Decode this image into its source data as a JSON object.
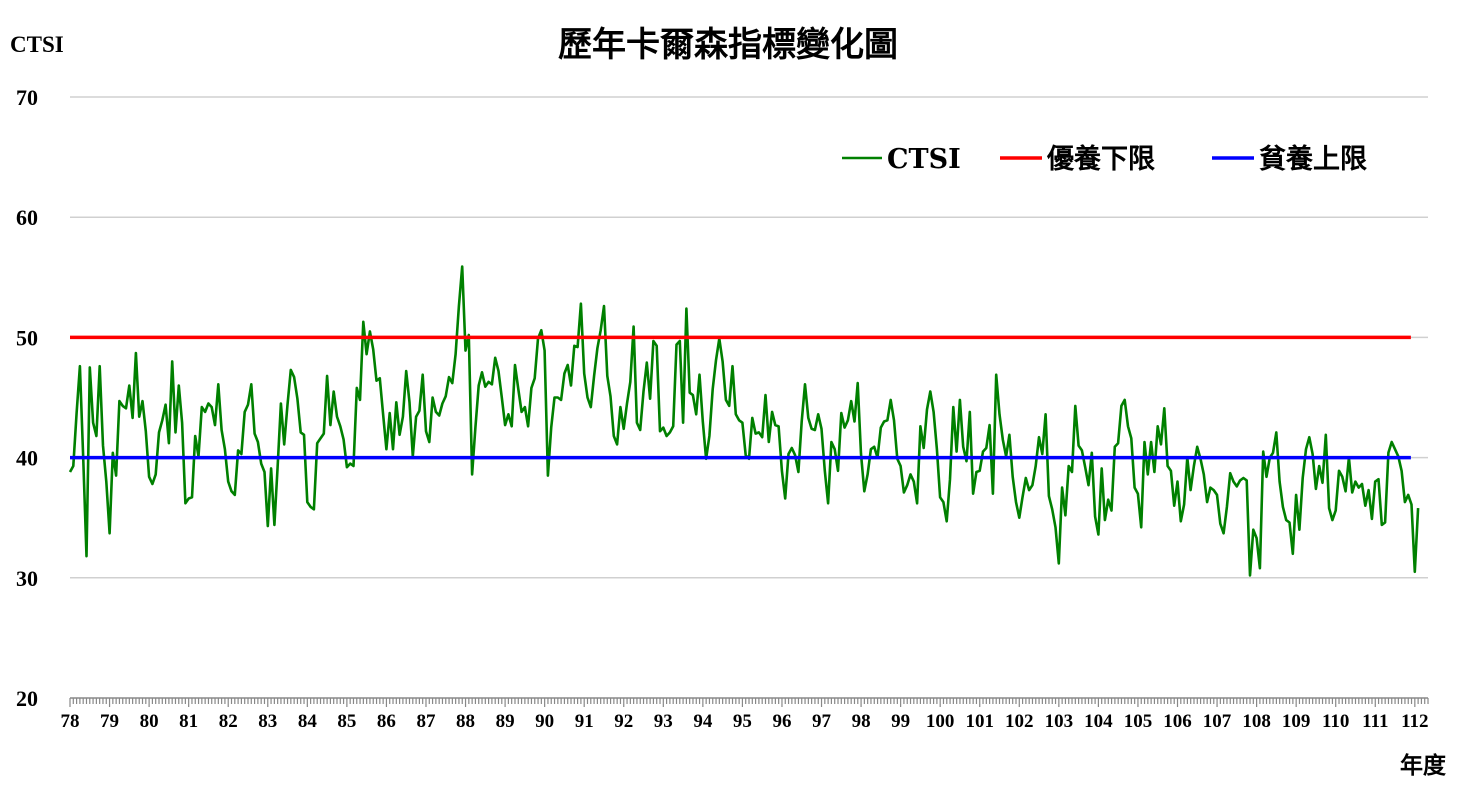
{
  "chart_data": {
    "type": "line",
    "title": "歷年卡爾森指標變化圖",
    "ylabel": "CTSI",
    "xlabel": "年度",
    "ylim": [
      20,
      70
    ],
    "yticks": [
      20,
      30,
      40,
      50,
      60,
      70
    ],
    "xlim": [
      78,
      112.333
    ],
    "xticks": [
      "78",
      "79",
      "80",
      "81",
      "82",
      "83",
      "84",
      "85",
      "86",
      "87",
      "88",
      "89",
      "90",
      "91",
      "92",
      "93",
      "94",
      "95",
      "96",
      "97",
      "98",
      "99",
      "100",
      "101",
      "102",
      "103",
      "104",
      "105",
      "106",
      "107",
      "108",
      "109",
      "110",
      "111",
      "112"
    ],
    "grid": "horizontal",
    "legend_position": "top-right",
    "series": [
      {
        "name": "CTSI",
        "color": "#008000",
        "x_start": 78,
        "step_years": 0.08333,
        "values": [
          38.8,
          39.3,
          43.7,
          47.6,
          40.0,
          31.8,
          47.5,
          42.9,
          41.8,
          47.6,
          41.0,
          38.0,
          33.7,
          40.4,
          38.5,
          44.7,
          44.3,
          44.1,
          46.0,
          43.3,
          48.7,
          43.4,
          44.7,
          42.2,
          38.4,
          37.8,
          38.6,
          42.1,
          43.1,
          44.4,
          41.2,
          48.0,
          42.1,
          46.0,
          42.9,
          36.2,
          36.6,
          36.7,
          41.8,
          40.1,
          44.2,
          43.8,
          44.5,
          44.2,
          42.7,
          46.1,
          42.3,
          40.7,
          38.0,
          37.2,
          36.9,
          40.6,
          40.3,
          43.8,
          44.4,
          46.1,
          42.0,
          41.3,
          39.5,
          38.8,
          34.3,
          39.1,
          34.4,
          39.2,
          44.5,
          41.1,
          44.4,
          47.3,
          46.7,
          44.9,
          42.1,
          41.9,
          36.3,
          35.9,
          35.7,
          41.2,
          41.6,
          42.0,
          46.8,
          42.7,
          45.5,
          43.4,
          42.6,
          41.5,
          39.2,
          39.5,
          39.3,
          45.8,
          44.8,
          51.3,
          48.6,
          50.5,
          49.0,
          46.4,
          46.6,
          43.6,
          40.7,
          43.7,
          40.7,
          44.6,
          41.9,
          43.4,
          47.2,
          44.6,
          40.1,
          43.4,
          43.9,
          46.9,
          42.2,
          41.3,
          45.0,
          43.8,
          43.5,
          44.5,
          45.1,
          46.7,
          46.2,
          48.6,
          52.6,
          55.9,
          48.9,
          50.2,
          38.6,
          42.5,
          46.0,
          47.1,
          45.9,
          46.3,
          46.1,
          48.3,
          47.2,
          45.0,
          42.7,
          43.6,
          42.6,
          47.7,
          45.7,
          43.8,
          44.2,
          42.6,
          45.8,
          46.6,
          49.9,
          50.6,
          48.9,
          38.5,
          42.5,
          45.0,
          45.0,
          44.8,
          47.0,
          47.7,
          46.0,
          49.3,
          49.2,
          52.8,
          47.0,
          45.0,
          44.2,
          46.8,
          49.1,
          50.6,
          52.6,
          46.8,
          45.1,
          41.8,
          41.1,
          44.2,
          42.4,
          44.5,
          46.3,
          50.9,
          42.9,
          42.3,
          45.5,
          47.9,
          44.9,
          49.7,
          49.3,
          42.2,
          42.5,
          41.8,
          42.1,
          42.6,
          49.4,
          49.7,
          42.9,
          52.4,
          45.4,
          45.2,
          43.6,
          46.9,
          43.0,
          39.9,
          41.8,
          45.7,
          48.1,
          49.9,
          48.0,
          44.8,
          44.3,
          47.6,
          43.6,
          43.1,
          42.9,
          40.2,
          39.9,
          43.3,
          42.0,
          42.1,
          41.7,
          45.2,
          41.3,
          43.8,
          42.7,
          42.6,
          38.9,
          36.6,
          40.3,
          40.8,
          40.2,
          38.8,
          43.0,
          46.1,
          43.3,
          42.4,
          42.3,
          43.6,
          42.4,
          38.9,
          36.2,
          41.3,
          40.7,
          38.9,
          43.7,
          42.5,
          43.1,
          44.7,
          43.0,
          46.2,
          40.3,
          37.2,
          38.6,
          40.7,
          40.9,
          40.0,
          42.5,
          43.0,
          43.1,
          44.8,
          43.1,
          39.9,
          39.3,
          37.1,
          37.7,
          38.6,
          38.0,
          36.2,
          42.6,
          40.8,
          44.0,
          45.5,
          43.8,
          40.7,
          36.7,
          36.3,
          34.7,
          38.2,
          44.2,
          40.5,
          44.8,
          40.9,
          39.7,
          43.8,
          37.0,
          38.8,
          38.9,
          40.5,
          40.8,
          42.7,
          37.0,
          46.9,
          43.6,
          41.5,
          40.1,
          41.9,
          38.4,
          36.3,
          35.0,
          36.7,
          38.3,
          37.3,
          37.7,
          39.3,
          41.7,
          40.3,
          43.6,
          36.8,
          35.7,
          34.2,
          31.2,
          37.5,
          35.2,
          39.3,
          38.8,
          44.3,
          41.0,
          40.6,
          39.2,
          37.7,
          40.4,
          35.1,
          33.6,
          39.1,
          34.8,
          36.5,
          35.6,
          40.9,
          41.2,
          44.3,
          44.8,
          42.6,
          41.6,
          37.5,
          37.0,
          34.2,
          41.3,
          38.6,
          41.3,
          38.8,
          42.6,
          41.1,
          44.1,
          39.3,
          38.9,
          36.0,
          38.0,
          34.7,
          36.1,
          40.0,
          37.3,
          39.3,
          40.9,
          39.9,
          38.6,
          36.3,
          37.5,
          37.3,
          36.9,
          34.5,
          33.7,
          35.9,
          38.7,
          38.0,
          37.6,
          38.1,
          38.3,
          38.1,
          30.2,
          34.0,
          33.3,
          30.8,
          40.5,
          38.4,
          40.0,
          40.4,
          42.1,
          38.0,
          35.9,
          34.8,
          34.6,
          32.0,
          36.9,
          34.0,
          38.3,
          40.7,
          41.7,
          40.3,
          37.4,
          39.3,
          37.9,
          41.9,
          35.8,
          34.8,
          35.6,
          38.9,
          38.4,
          37.2,
          40.0,
          37.1,
          38.0,
          37.5,
          37.8,
          36.0,
          37.3,
          34.9,
          38.0,
          38.2,
          34.4,
          34.6,
          40.4,
          41.3,
          40.7,
          40.1,
          38.9,
          36.3,
          36.9,
          36.1,
          30.5,
          35.8
        ]
      },
      {
        "name": "優養下限",
        "color": "#ff0000",
        "value": 50,
        "x_range": [
          78,
          111.9
        ]
      },
      {
        "name": "貧養上限",
        "color": "#0000ff",
        "value": 40,
        "x_range": [
          78,
          111.9
        ]
      }
    ]
  }
}
